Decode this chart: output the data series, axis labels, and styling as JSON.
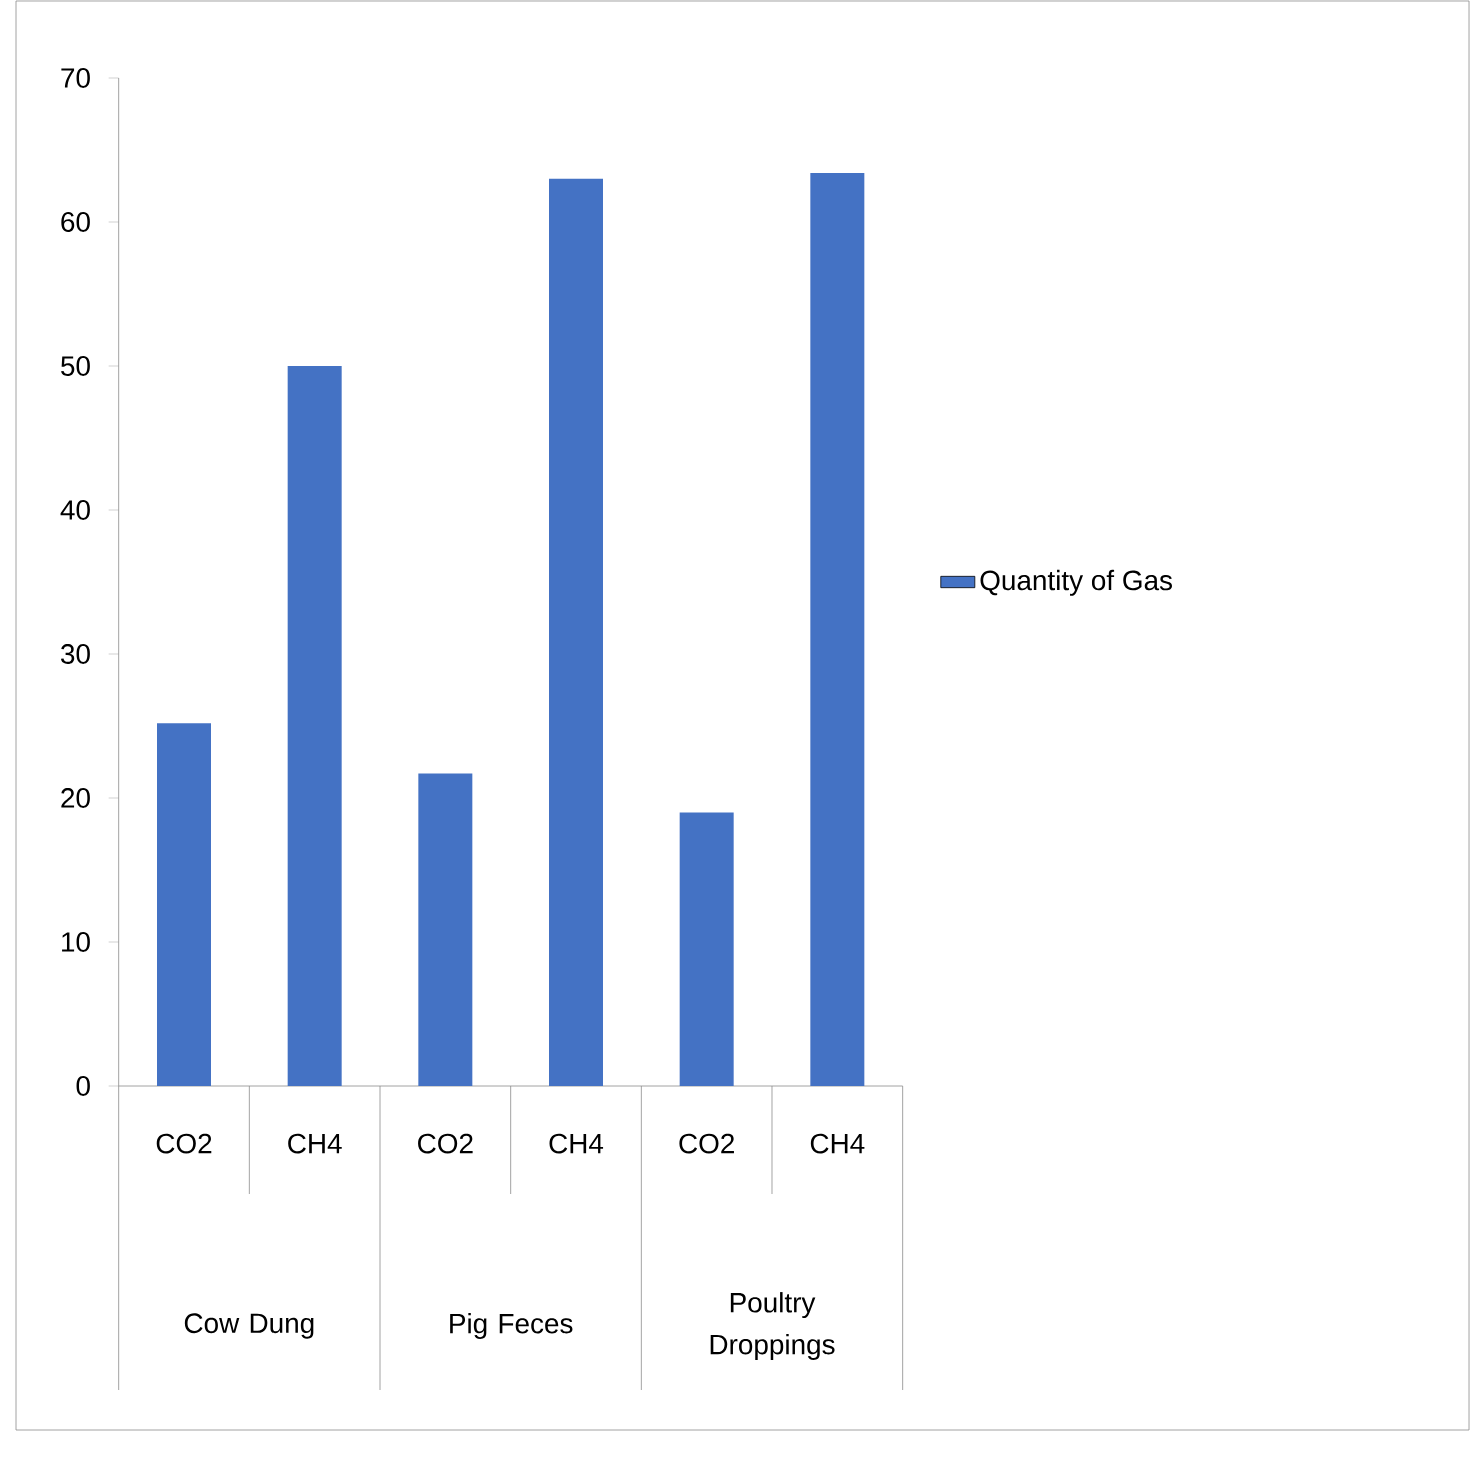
{
  "chart_data": {
    "type": "bar",
    "categories": [
      "CO2",
      "CH4",
      "CO2",
      "CH4",
      "CO2",
      "CH4"
    ],
    "series": [
      {
        "name": "Quantity of Gas",
        "color": "#4472c4",
        "values": [
          25.2,
          50,
          21.7,
          63,
          19,
          63.4
        ]
      }
    ],
    "annotations": [
      "Cow Dung",
      "Pig Feces",
      "Poultry Droppings"
    ],
    "ylim": [
      0,
      70
    ],
    "yticks": [
      0,
      10,
      20,
      30,
      40,
      50,
      60,
      70
    ],
    "grid": false,
    "legend": "right"
  }
}
